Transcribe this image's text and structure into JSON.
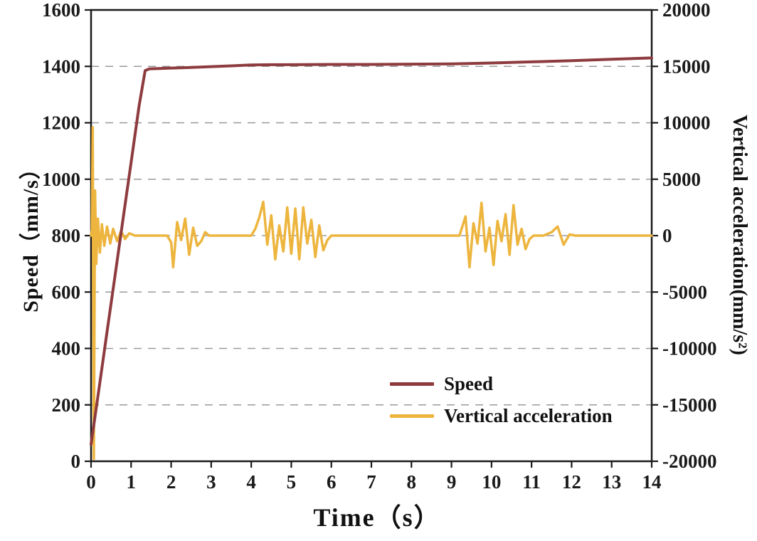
{
  "figure": {
    "background": "#ffffff",
    "axis_color": "#1a1a1a",
    "grid_color": "#9a9a9a"
  },
  "chart_data": {
    "type": "line",
    "title": "",
    "xlabel": "Time（s）",
    "ylabel_left": "Speed（mm/s）",
    "ylabel_right": "Vertical acceleration(mm/s²)",
    "xlim": [
      0,
      14
    ],
    "ylim_left": [
      0,
      1600
    ],
    "ylim_right": [
      -20000,
      20000
    ],
    "x_ticks": [
      0,
      1,
      2,
      3,
      4,
      5,
      6,
      7,
      8,
      9,
      10,
      11,
      12,
      13,
      14
    ],
    "left_ticks": [
      0,
      200,
      400,
      600,
      800,
      1000,
      1200,
      1400,
      1600
    ],
    "right_ticks": [
      -20000,
      -15000,
      -10000,
      -5000,
      0,
      5000,
      10000,
      15000,
      20000
    ],
    "grid": "horizontal-dashed",
    "legend": {
      "position": "lower-right",
      "entries": [
        {
          "label": "Speed",
          "color": "#8d3b3e"
        },
        {
          "label": "Vertical acceleration",
          "color": "#edb53e"
        }
      ]
    },
    "series": [
      {
        "name": "Speed",
        "axis": "left",
        "color": "#8d3b3e",
        "width": 4,
        "points": [
          [
            0,
            60
          ],
          [
            0.2,
            260
          ],
          [
            0.4,
            460
          ],
          [
            0.6,
            660
          ],
          [
            0.8,
            860
          ],
          [
            1.0,
            1060
          ],
          [
            1.2,
            1260
          ],
          [
            1.35,
            1385
          ],
          [
            1.45,
            1391
          ],
          [
            2,
            1394
          ],
          [
            2.5,
            1396
          ],
          [
            3,
            1399
          ],
          [
            3.5,
            1402
          ],
          [
            4,
            1405
          ],
          [
            4.5,
            1406
          ],
          [
            5,
            1406
          ],
          [
            6,
            1407
          ],
          [
            7,
            1407
          ],
          [
            8,
            1408
          ],
          [
            9,
            1409
          ],
          [
            10,
            1412
          ],
          [
            11,
            1416
          ],
          [
            12,
            1420
          ],
          [
            13,
            1425
          ],
          [
            14,
            1430
          ]
        ]
      },
      {
        "name": "Vertical acceleration",
        "axis": "right",
        "color": "#edb53e",
        "width": 3.5,
        "points": [
          [
            0,
            0
          ],
          [
            0.02,
            500
          ],
          [
            0.04,
            9600
          ],
          [
            0.07,
            -19800
          ],
          [
            0.1,
            4000
          ],
          [
            0.13,
            -2500
          ],
          [
            0.17,
            1500
          ],
          [
            0.22,
            -1500
          ],
          [
            0.27,
            1000
          ],
          [
            0.33,
            -900
          ],
          [
            0.4,
            800
          ],
          [
            0.48,
            -700
          ],
          [
            0.55,
            600
          ],
          [
            0.65,
            -500
          ],
          [
            0.75,
            400
          ],
          [
            0.85,
            -300
          ],
          [
            0.95,
            200
          ],
          [
            1.1,
            0
          ],
          [
            1.9,
            0
          ],
          [
            2.0,
            -600
          ],
          [
            2.05,
            -2800
          ],
          [
            2.15,
            1200
          ],
          [
            2.25,
            -400
          ],
          [
            2.35,
            1500
          ],
          [
            2.45,
            -1700
          ],
          [
            2.55,
            700
          ],
          [
            2.65,
            -900
          ],
          [
            2.75,
            -500
          ],
          [
            2.85,
            300
          ],
          [
            2.95,
            0
          ],
          [
            4.0,
            0
          ],
          [
            4.1,
            600
          ],
          [
            4.2,
            1600
          ],
          [
            4.3,
            3000
          ],
          [
            4.4,
            -800
          ],
          [
            4.5,
            1800
          ],
          [
            4.6,
            -2100
          ],
          [
            4.7,
            900
          ],
          [
            4.8,
            -1400
          ],
          [
            4.9,
            2500
          ],
          [
            5.0,
            -1600
          ],
          [
            5.1,
            2400
          ],
          [
            5.2,
            -2100
          ],
          [
            5.3,
            2500
          ],
          [
            5.4,
            -700
          ],
          [
            5.5,
            1400
          ],
          [
            5.6,
            -1900
          ],
          [
            5.7,
            900
          ],
          [
            5.8,
            -1300
          ],
          [
            5.9,
            -400
          ],
          [
            6.0,
            0
          ],
          [
            9.2,
            0
          ],
          [
            9.35,
            1700
          ],
          [
            9.45,
            -2800
          ],
          [
            9.55,
            1100
          ],
          [
            9.65,
            -700
          ],
          [
            9.75,
            2900
          ],
          [
            9.85,
            -1400
          ],
          [
            9.95,
            700
          ],
          [
            10.05,
            -2600
          ],
          [
            10.15,
            1300
          ],
          [
            10.25,
            -500
          ],
          [
            10.35,
            1900
          ],
          [
            10.45,
            -1700
          ],
          [
            10.55,
            2700
          ],
          [
            10.65,
            -800
          ],
          [
            10.75,
            600
          ],
          [
            10.85,
            -1200
          ],
          [
            10.95,
            -300
          ],
          [
            11.05,
            0
          ],
          [
            11.3,
            0
          ],
          [
            11.5,
            300
          ],
          [
            11.65,
            800
          ],
          [
            11.8,
            -800
          ],
          [
            11.95,
            100
          ],
          [
            12.1,
            0
          ],
          [
            13,
            0
          ],
          [
            14,
            0
          ]
        ]
      }
    ]
  }
}
